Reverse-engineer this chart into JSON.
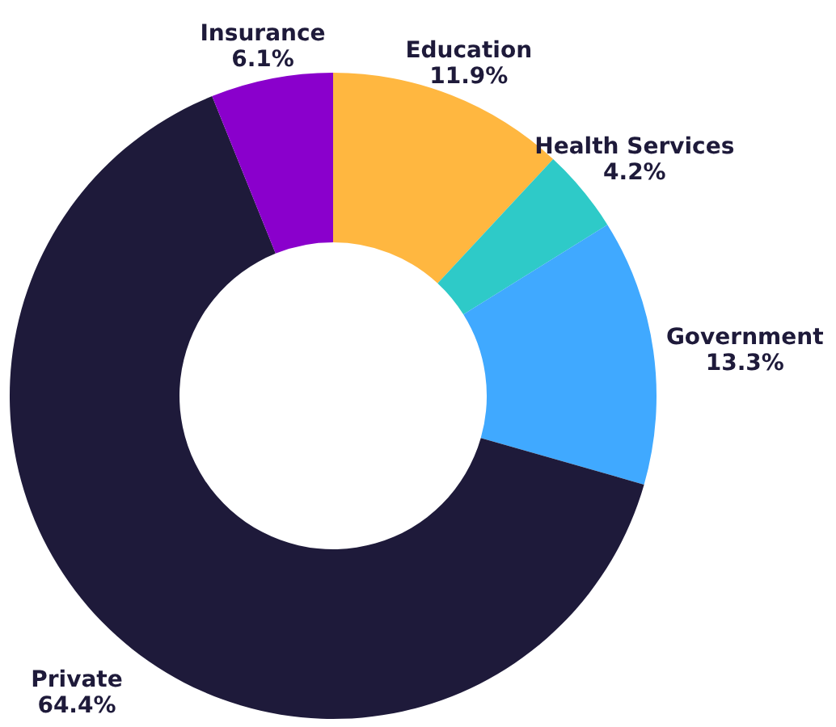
{
  "chart_data": {
    "type": "donut",
    "categories": [
      "Education",
      "Health Services",
      "Government",
      "Private",
      "Insurance"
    ],
    "values": [
      11.9,
      4.2,
      13.3,
      64.4,
      6.1
    ],
    "value_labels": [
      "11.9%",
      "4.2%",
      "13.3%",
      "64.4%",
      "6.1%"
    ],
    "colors": [
      "#ffb740",
      "#2ecac8",
      "#40a9ff",
      "#1e1a3a",
      "#8a00cc"
    ]
  }
}
